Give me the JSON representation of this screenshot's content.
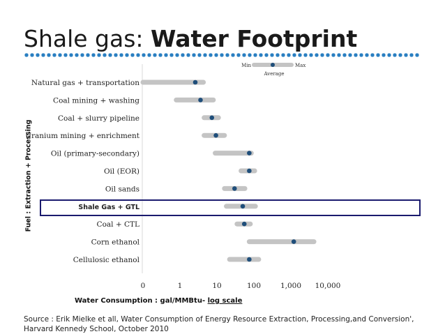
{
  "slide": {
    "title_plain": "Shale gas: ",
    "title_bold": "Water Footprint",
    "source": "Source : Erik Mielke et all, Water Consumption of Energy Resource Extraction, Processing,and Conversion', Harvard Kennedy School, October 2010"
  },
  "colors": {
    "range_bar": "#c4c4c4",
    "average_dot": "#1f4e7a",
    "accent_dots": "#2a7fc1",
    "highlight_box": "#1a1a6e"
  },
  "chart_data": {
    "type": "range",
    "ylabel": "Fuel : Extraction + Processing",
    "xlabel": "Water Consumption : gal/MMBtu-",
    "xlabel_scale": "log scale",
    "xscale": "log",
    "xlim": [
      0,
      10000
    ],
    "xticks": [
      {
        "value": 0,
        "label": "0"
      },
      {
        "value": 1,
        "label": "1"
      },
      {
        "value": 10,
        "label": "10"
      },
      {
        "value": 100,
        "label": "100"
      },
      {
        "value": 1000,
        "label": "1,000"
      },
      {
        "value": 10000,
        "label": "10,000"
      }
    ],
    "legend": {
      "min": "Min",
      "max": "Max",
      "average": "Average",
      "position": "top-right"
    },
    "highlighted": "Shale Gas + GTL",
    "rows": [
      {
        "label": "Natural gas + transportation",
        "min": 0,
        "max": 4.3,
        "avg": 2.6
      },
      {
        "label": "Coal mining + washing",
        "min": 0.9,
        "max": 8,
        "avg": 3.6
      },
      {
        "label": "Coal + slurry pipeline",
        "min": 4.5,
        "max": 11,
        "avg": 7.3
      },
      {
        "label": "Uranium mining + enrichment",
        "min": 4.5,
        "max": 16,
        "avg": 9.4
      },
      {
        "label": "Oil (primary-secondary)",
        "min": 9,
        "max": 85,
        "avg": 75
      },
      {
        "label": "Oil (EOR)",
        "min": 45,
        "max": 105,
        "avg": 75
      },
      {
        "label": "Oil sands",
        "min": 16,
        "max": 57,
        "avg": 30
      },
      {
        "label": "Shale Gas + GTL",
        "min": 18,
        "max": 110,
        "avg": 50
      },
      {
        "label": "Coal + CTL",
        "min": 35,
        "max": 80,
        "avg": 55
      },
      {
        "label": "Corn ethanol",
        "min": 75,
        "max": 4200,
        "avg": 1200
      },
      {
        "label": "Cellulosic ethanol",
        "min": 22,
        "max": 135,
        "avg": 75
      }
    ]
  }
}
